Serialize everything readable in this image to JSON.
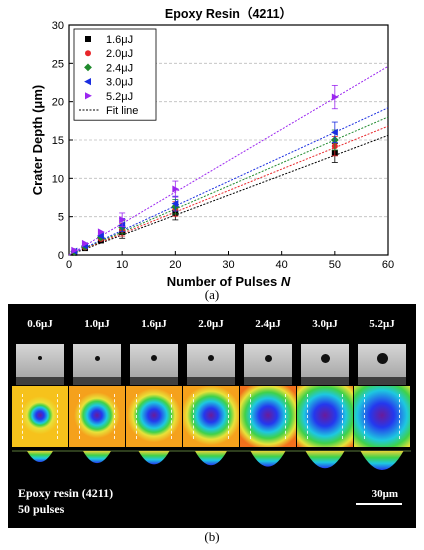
{
  "chart_data": {
    "type": "scatter",
    "title": "Epoxy Resin（4211）",
    "xlabel": "Number of Pulses",
    "xlabel_symbol": "N",
    "ylabel": "Crater Depth (μm)",
    "xlim": [
      0,
      60
    ],
    "ylim": [
      0,
      30
    ],
    "xticks": [
      "0",
      "10",
      "20",
      "30",
      "40",
      "50",
      "60"
    ],
    "yticks": [
      "0",
      "5",
      "10",
      "15",
      "20",
      "25",
      "30"
    ],
    "grid": "horizontal dashed",
    "legend_position": "top-left",
    "x": [
      1,
      3,
      6,
      10,
      20,
      50
    ],
    "series": [
      {
        "name": "1.6μJ",
        "marker": "square",
        "color": "#000000",
        "values": [
          0.3,
          0.9,
          1.9,
          3.0,
          5.5,
          13.3
        ],
        "fit_slope": 0.26
      },
      {
        "name": "2.0μJ",
        "marker": "circle",
        "color": "#e8262a",
        "values": [
          0.4,
          1.0,
          2.1,
          3.3,
          6.0,
          14.2
        ],
        "fit_slope": 0.28
      },
      {
        "name": "2.4μJ",
        "marker": "diamond",
        "color": "#1f8a2d",
        "values": [
          0.4,
          1.1,
          2.3,
          3.6,
          6.3,
          15.0
        ],
        "fit_slope": 0.3
      },
      {
        "name": "3.0μJ",
        "marker": "triangle-left",
        "color": "#1a2ee0",
        "values": [
          0.5,
          1.2,
          2.5,
          3.9,
          6.7,
          16.0
        ],
        "fit_slope": 0.32
      },
      {
        "name": "5.2μJ",
        "marker": "triangle-right",
        "color": "#9b26f0",
        "values": [
          0.6,
          1.5,
          3.0,
          4.6,
          8.6,
          20.6
        ],
        "fit_slope": 0.41
      }
    ],
    "fit_label": "Fit line"
  },
  "captions": {
    "a": "(a)",
    "b": "(b)"
  },
  "micrograph": {
    "energies": [
      "0.6μJ",
      "1.0μJ",
      "1.6μJ",
      "2.0μJ",
      "2.4μJ",
      "3.0μJ",
      "5.2μJ"
    ],
    "material": "Epoxy resin (4211)",
    "pulses": "50 pulses",
    "scale": "30μm"
  },
  "colors": {
    "map_yellow": "#f6c21c",
    "map_orange": "#f2701c",
    "crater_blue": "#2438ee"
  }
}
